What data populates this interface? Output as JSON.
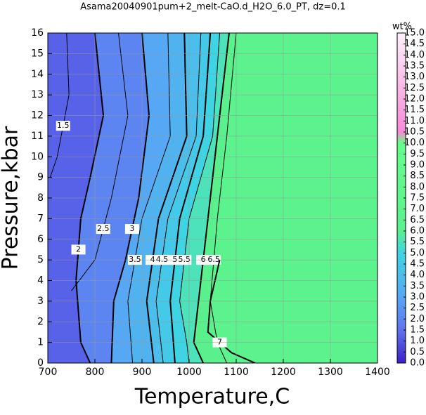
{
  "chart_data": {
    "type": "contour",
    "title": "Asama20040901pum+2_melt-CaO.d_H2O_6.0_PT, dz=0.1",
    "xlabel": "Temperature,C",
    "ylabel": "Pressure,kbar",
    "colorbar_label": "wt%",
    "xlim": [
      700,
      1400
    ],
    "ylim": [
      0,
      16
    ],
    "xticks": [
      700,
      800,
      900,
      1000,
      1100,
      1200,
      1300,
      1400
    ],
    "yticks": [
      0,
      1,
      2,
      3,
      4,
      5,
      6,
      7,
      8,
      9,
      10,
      11,
      12,
      13,
      14,
      15,
      16
    ],
    "grid": true,
    "clim": [
      0,
      15
    ],
    "cticks": [
      {
        "value": 0,
        "label": "0.0"
      },
      0.5,
      {
        "value": 1,
        "label": "1.0"
      },
      1.5,
      {
        "value": 2,
        "label": "2.0"
      },
      2.5,
      {
        "value": 3,
        "label": "3.0"
      },
      3.5,
      {
        "value": 4,
        "label": "4.0"
      },
      4.5,
      {
        "value": 5,
        "label": "5.0"
      },
      5.5,
      {
        "value": 6,
        "label": "6.0"
      },
      6.5,
      {
        "value": 7,
        "label": "7.0"
      },
      7.5,
      {
        "value": 8,
        "label": "8.0"
      },
      8.5,
      {
        "value": 9,
        "label": "9.0"
      },
      9.5,
      {
        "value": 10,
        "label": "10.0"
      },
      10.5,
      {
        "value": 11,
        "label": "11.0"
      },
      11.5,
      {
        "value": 12,
        "label": "12.0"
      },
      12.5,
      {
        "value": 13,
        "label": "13.0"
      },
      13.5,
      {
        "value": 14,
        "label": "14.0"
      },
      14.5,
      {
        "value": 15,
        "label": "15.0"
      }
    ],
    "colormap": [
      {
        "value": 0,
        "color": "#3c1fc8"
      },
      {
        "value": 1.5,
        "color": "#5f73f0"
      },
      {
        "value": 3,
        "color": "#56a8f4"
      },
      {
        "value": 5,
        "color": "#3fd4e4"
      },
      {
        "value": 6,
        "color": "#5af08e"
      },
      {
        "value": 10,
        "color": "#66ff88"
      },
      {
        "value": 10.5,
        "color": "#f88ad8"
      },
      {
        "value": 15,
        "color": "#fff0fa"
      }
    ],
    "base_level": 1.2,
    "contours": [
      {
        "level": 1.5,
        "x": [
          740,
          745,
          720,
          705
        ],
        "y": [
          16,
          13,
          10,
          9
        ]
      },
      {
        "level": 2,
        "x": [
          800,
          818,
          790,
          770,
          760,
          770,
          790
        ],
        "y": [
          16,
          12,
          9,
          7,
          4,
          1,
          0
        ]
      },
      {
        "level": 2.5,
        "x": [
          850,
          870,
          835,
          800,
          750
        ],
        "y": [
          16,
          12,
          8,
          5,
          3.5
        ]
      },
      {
        "level": 3,
        "x": [
          900,
          915,
          893,
          865,
          840,
          835
        ],
        "y": [
          16,
          12,
          8,
          5,
          3,
          0
        ]
      },
      {
        "level": 3.5,
        "x": [
          955,
          960,
          900,
          870,
          880
        ],
        "y": [
          16,
          11,
          7,
          3,
          0
        ]
      },
      {
        "level": 4,
        "x": [
          990,
          995,
          935,
          910,
          925
        ],
        "y": [
          16,
          11,
          7,
          3,
          0
        ]
      },
      {
        "level": 4.5,
        "x": [
          1025,
          1015,
          955,
          930,
          945
        ],
        "y": [
          16,
          11,
          7,
          3,
          0
        ]
      },
      {
        "level": 5,
        "x": [
          1045,
          1030,
          980,
          960,
          970
        ],
        "y": [
          16,
          11,
          7,
          3,
          0
        ]
      },
      {
        "level": 5.5,
        "x": [
          1065,
          1050,
          1000,
          980,
          995,
          1000
        ],
        "y": [
          16,
          11,
          7,
          3,
          1,
          0
        ]
      },
      {
        "level": 6,
        "x": [
          1085,
          1060,
          1040,
          1020,
          1010,
          1030
        ],
        "y": [
          16,
          11,
          7,
          3,
          1,
          0
        ]
      },
      {
        "level": 6.5,
        "x": [
          1100,
          1080,
          1060,
          1045,
          1060,
          1080
        ],
        "y": [
          16,
          11,
          7,
          3,
          1,
          0
        ]
      },
      {
        "level": 7,
        "x": [
          1065,
          1045,
          1040,
          1090,
          1140
        ],
        "y": [
          5,
          3,
          1.5,
          0.5,
          0
        ]
      }
    ]
  }
}
